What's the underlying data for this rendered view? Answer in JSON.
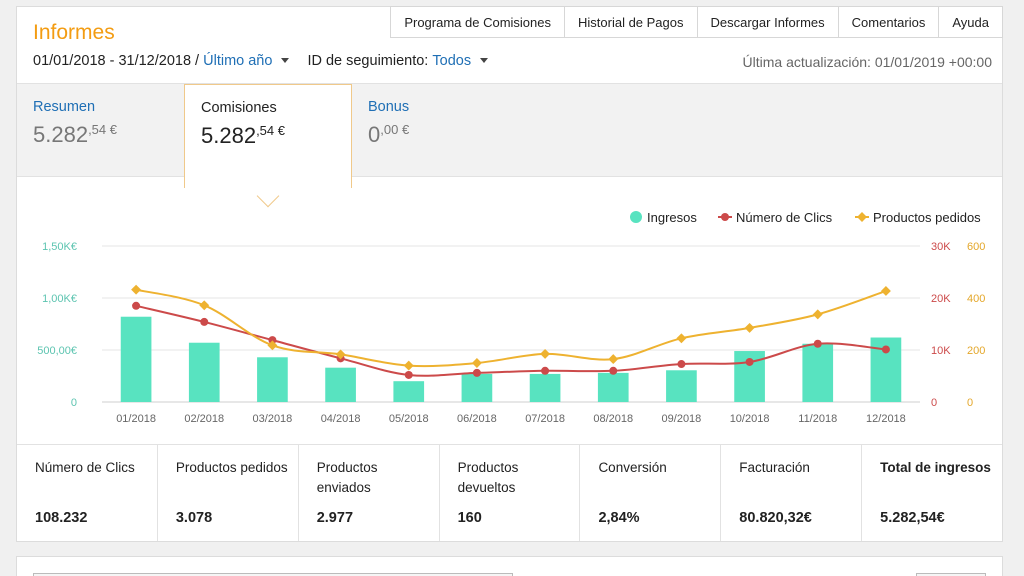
{
  "header": {
    "title": "Informes"
  },
  "topnav": [
    "Programa de Comisiones",
    "Historial de Pagos",
    "Descargar Informes",
    "Comentarios",
    "Ayuda"
  ],
  "filters": {
    "date_range": "01/01/2018 - 31/12/2018 /",
    "period": "Último año",
    "tracking_label": "ID de seguimiento:",
    "tracking_value": "Todos"
  },
  "last_update": "Última actualización: 01/01/2019 +00:00",
  "tabs": [
    {
      "label": "Resumen",
      "value_int": "5.282",
      "value_dec": ",54",
      "currency": " €"
    },
    {
      "label": "Comisiones",
      "value_int": "5.282",
      "value_dec": ",54",
      "currency": " €"
    },
    {
      "label": "Bonus",
      "value_int": "0",
      "value_dec": ",00",
      "currency": " €"
    }
  ],
  "chart_data": {
    "type": "bar+line",
    "categories": [
      "01/2018",
      "02/2018",
      "03/2018",
      "04/2018",
      "05/2018",
      "06/2018",
      "07/2018",
      "08/2018",
      "09/2018",
      "10/2018",
      "11/2018",
      "12/2018"
    ],
    "legend": [
      "Ingresos",
      "Número de Clics",
      "Productos pedidos"
    ],
    "legend_position": "top-right",
    "grid": true,
    "series": [
      {
        "name": "Ingresos",
        "type": "bar",
        "axis": "left",
        "color": "#58e3c0",
        "values": [
          820,
          570,
          430,
          330,
          200,
          270,
          270,
          280,
          305,
          490,
          560,
          620
        ]
      },
      {
        "name": "Número de Clics",
        "type": "line",
        "axis": "right1",
        "color": "#cc4a4a",
        "values": [
          18500,
          15400,
          11900,
          8400,
          5200,
          5600,
          6000,
          6000,
          7300,
          7700,
          11200,
          10100
        ]
      },
      {
        "name": "Productos pedidos",
        "type": "line",
        "axis": "right2",
        "color": "#eeb230",
        "values": [
          432,
          372,
          218,
          183,
          140,
          150,
          185,
          165,
          245,
          285,
          337,
          427
        ]
      }
    ],
    "axes": {
      "left": {
        "ticks": [
          "0",
          "500,00€",
          "1,00K€",
          "1,50K€"
        ],
        "ylim": [
          0,
          1500
        ],
        "color": "#5cc4b0"
      },
      "right1": {
        "ticks": [
          "0",
          "10K",
          "20K",
          "30K"
        ],
        "ylim": [
          0,
          30000
        ],
        "color": "#cc4a4a"
      },
      "right2": {
        "ticks": [
          "0",
          "200",
          "400",
          "600"
        ],
        "ylim": [
          0,
          600
        ],
        "color": "#e4a72a"
      }
    }
  },
  "stats": [
    {
      "label": "Número de Clics",
      "value": "108.232"
    },
    {
      "label": "Productos pedidos",
      "value": "3.078"
    },
    {
      "label": "Productos enviados",
      "value": "2.977"
    },
    {
      "label": "Productos devueltos",
      "value": "160"
    },
    {
      "label": "Conversión",
      "value": "2,84%"
    },
    {
      "label": "Facturación",
      "value": "80.820,32€"
    },
    {
      "label": "Total de ingresos",
      "value": "5.282,54€"
    }
  ]
}
